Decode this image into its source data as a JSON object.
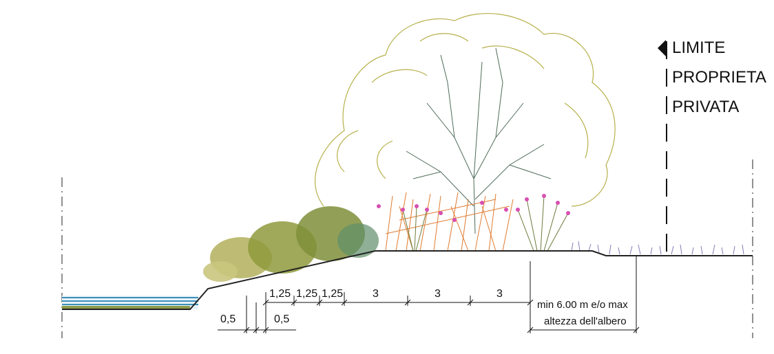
{
  "property_limit": {
    "line1": "LIMITE",
    "line2": "PROPRIETA",
    "line3": "PRIVATA"
  },
  "dimensions": {
    "top": [
      "1,25",
      "1,25",
      "1,25",
      "3",
      "3",
      "3"
    ],
    "bottom": [
      "0,5",
      "0,5"
    ],
    "note_line1": "min 6.00 m e/o max",
    "note_line2": "altezza dell'albero"
  },
  "colors": {
    "water": "#3b8fb8",
    "ground": "#222222",
    "tree_outline": "#b6b04a",
    "tree_branches": "#4d6a57",
    "shrubs": "#8a8a3a",
    "reeds": "#e07a2e",
    "flowers": "#d84fb0",
    "grass": "#8a7ab8"
  }
}
